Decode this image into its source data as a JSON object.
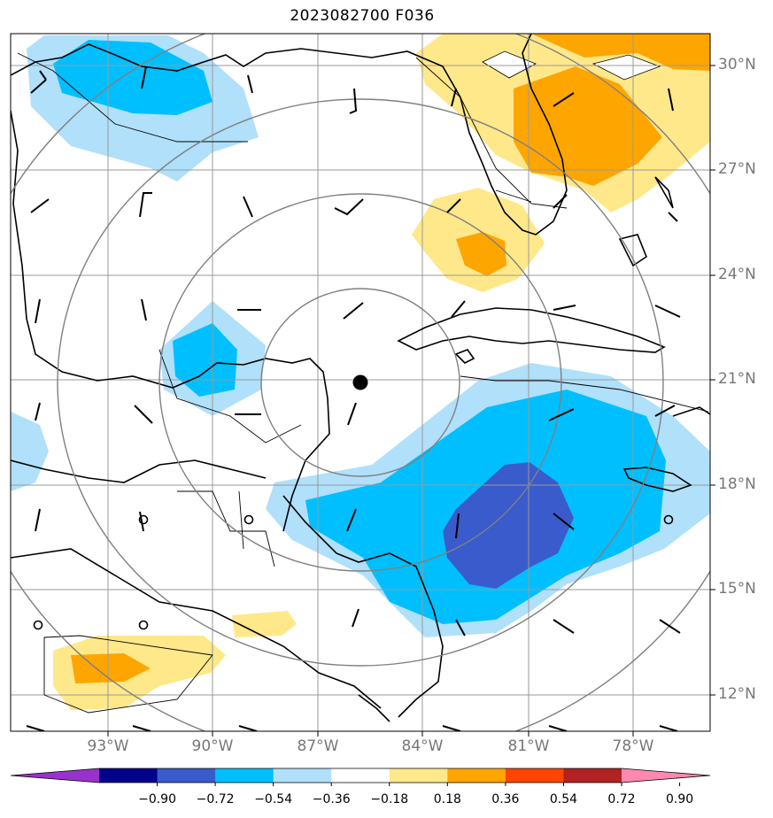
{
  "title": "2023082700 F036",
  "lat_labels": [
    "30°N",
    "27°N",
    "24°N",
    "21°N",
    "18°N",
    "15°N",
    "12°N"
  ],
  "lon_labels": [
    "93°W",
    "90°W",
    "87°W",
    "84°W",
    "81°W",
    "78°W"
  ],
  "colorbar": {
    "ticks": [
      "−0.90",
      "−0.72",
      "−0.54",
      "−0.36",
      "−0.18",
      "0.18",
      "0.36",
      "0.54",
      "0.72",
      "0.90"
    ],
    "colors": [
      "#9932cc",
      "#00008b",
      "#3a5bcb",
      "#00bfff",
      "#b0e0fa",
      "#ffffff",
      "#ffe88a",
      "#ffa500",
      "#ff4500",
      "#b22222",
      "#ff88b0"
    ]
  },
  "storm_center": {
    "lat": 20.9,
    "lon": "85.8°W"
  },
  "field_colors": {
    "negative_light": "#b0e0fa",
    "negative_mid": "#00bfff",
    "negative_strong": "#3a5bcb",
    "positive_light": "#ffe88a",
    "positive_mid": "#ffa500"
  }
}
